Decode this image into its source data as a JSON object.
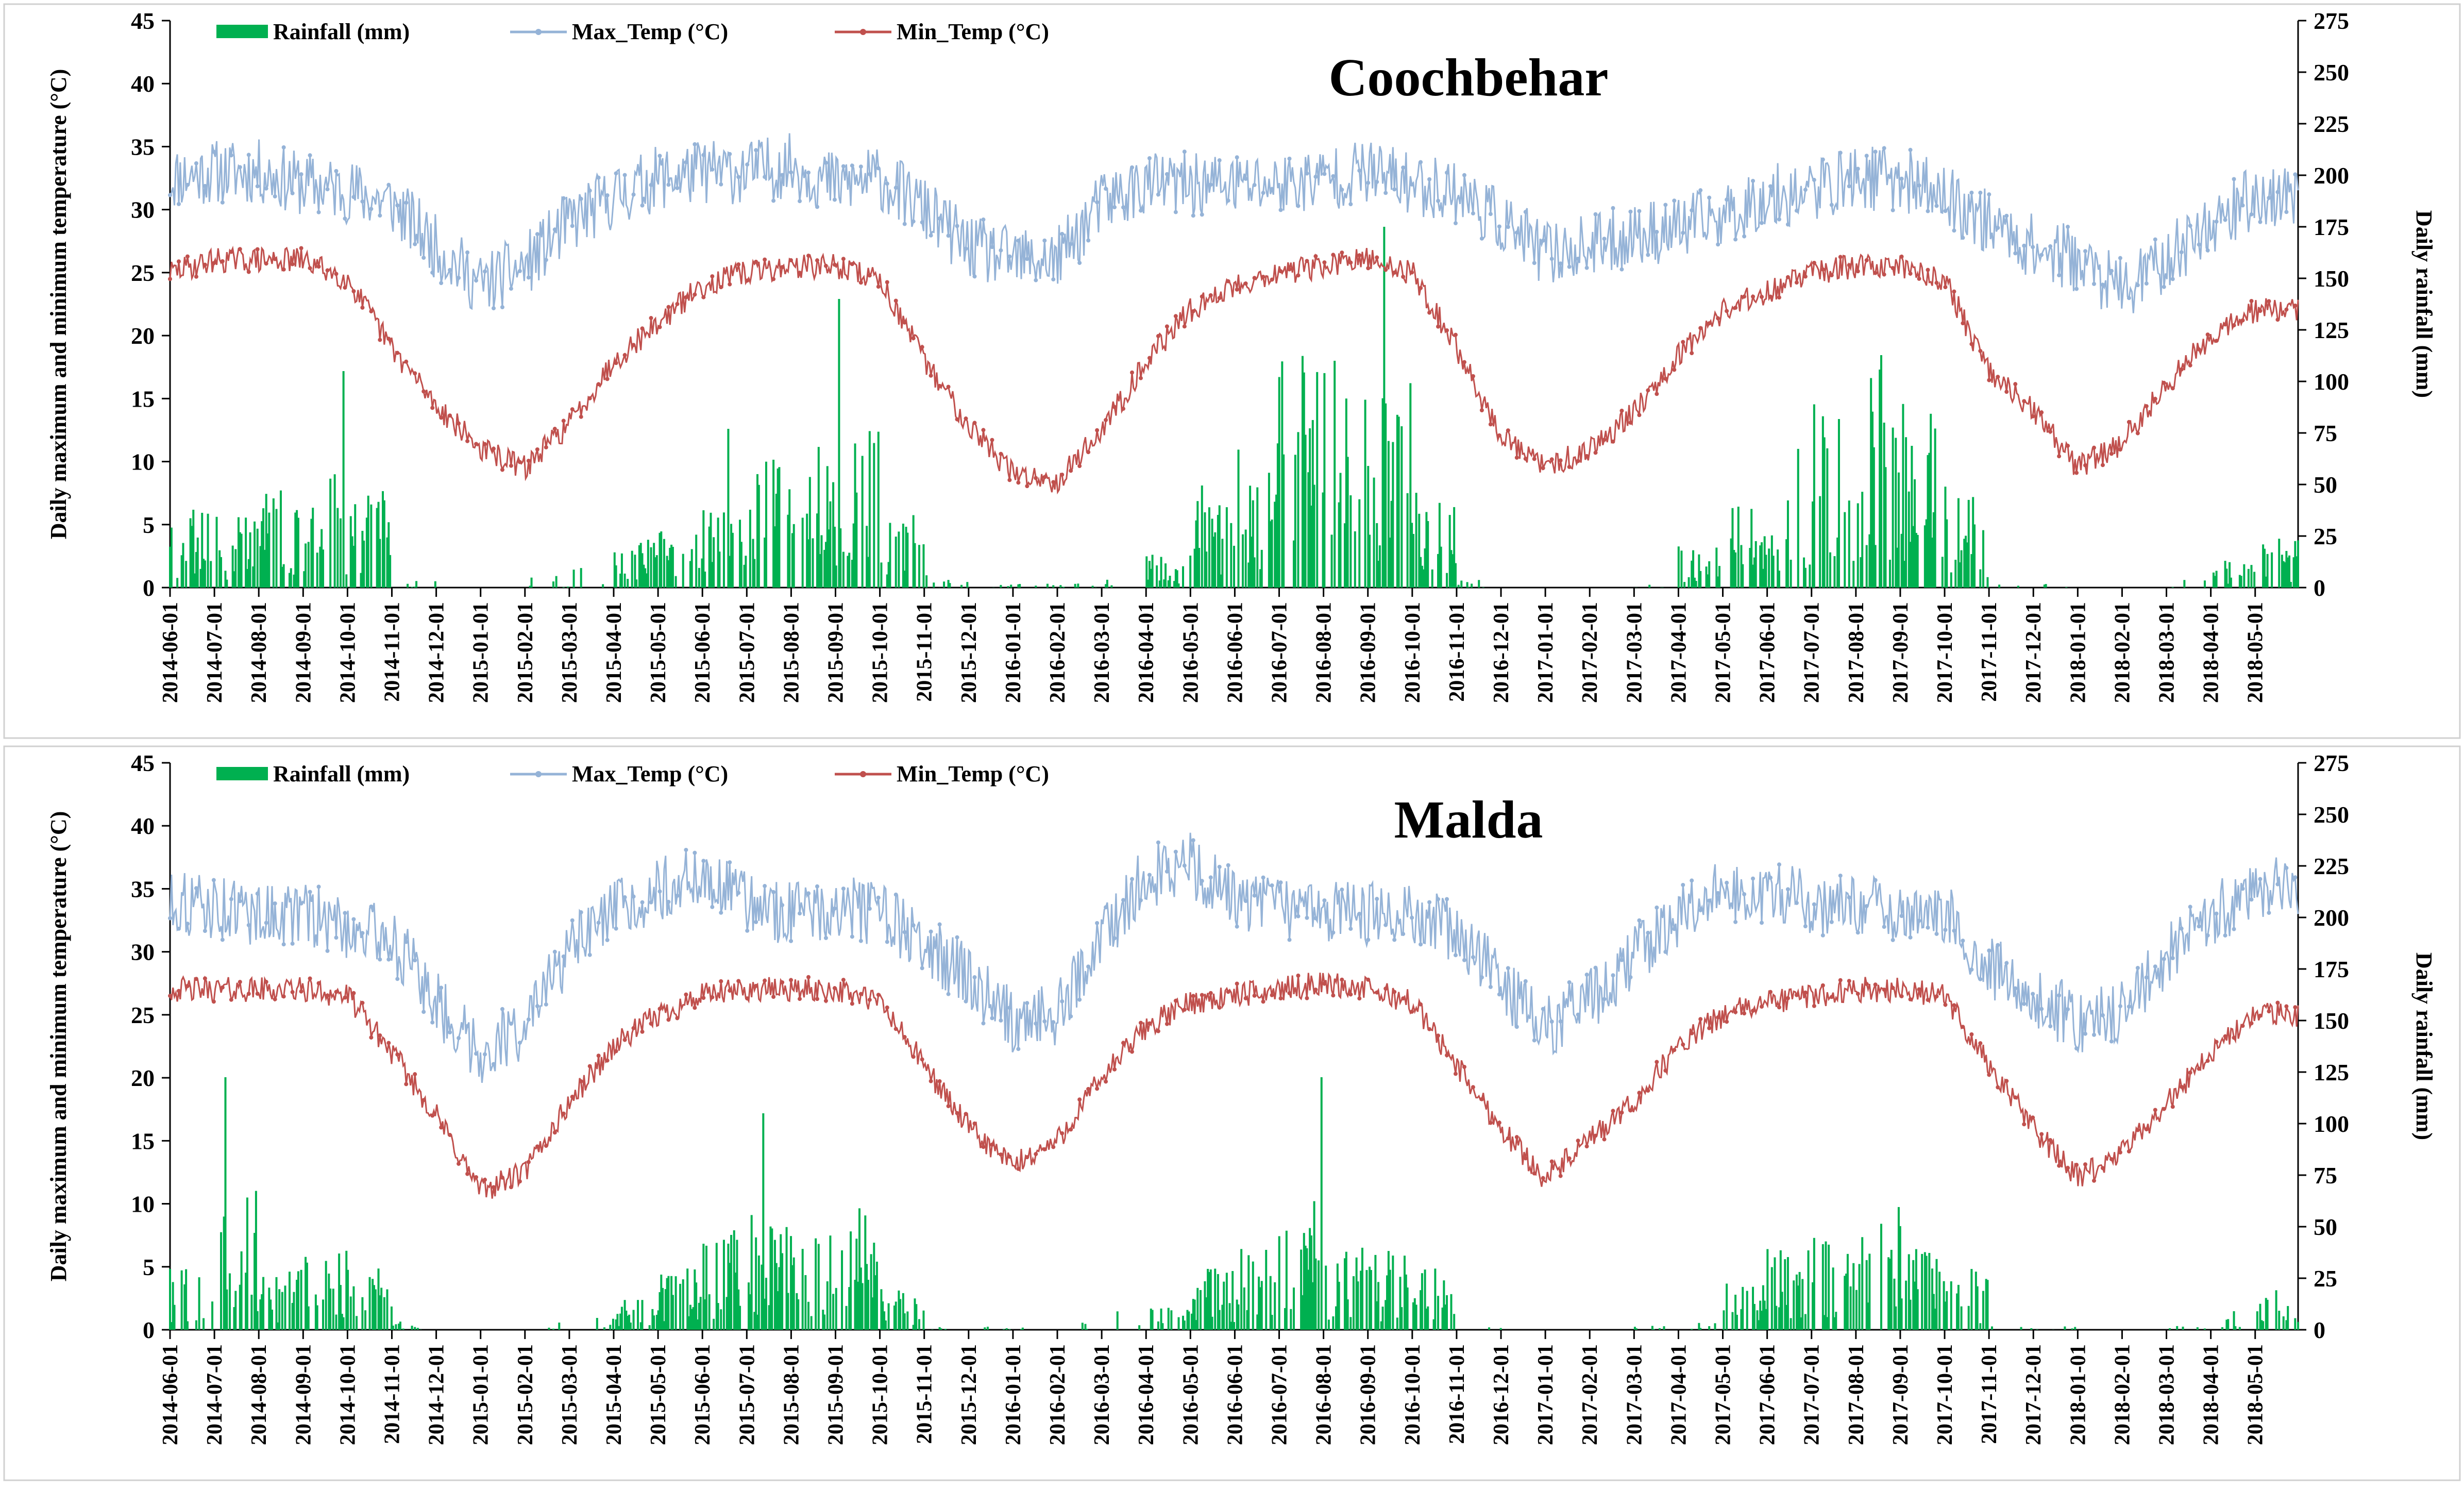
{
  "figure": {
    "panels": [
      "Coochbehar",
      "Malda"
    ],
    "legend": {
      "rainfall": "Rainfall (mm)",
      "max_temp": "Max_Temp (°C)",
      "min_temp": "Min_Temp (°C)"
    },
    "axes": {
      "y_left_label": "Daily maximum and minimum temperature (°C)",
      "y_right_label": "Daily rainfall (mm)"
    },
    "colors": {
      "rainfall": "#00b050",
      "max_temp": "#95b3d7",
      "min_temp": "#c0504d"
    }
  },
  "chart_data": [
    {
      "type": "line",
      "title": "Coochbehar",
      "legend_position": "top-left",
      "xlabel": "",
      "ylabel": "Daily maximum and minimum temperature (°C)",
      "y2label": "Daily rainfall (mm)",
      "ylim": [
        0,
        45
      ],
      "y2lim": [
        0,
        275
      ],
      "yticks": [
        0,
        5,
        10,
        15,
        20,
        25,
        30,
        35,
        40,
        45
      ],
      "y2ticks": [
        0,
        25,
        50,
        75,
        100,
        125,
        150,
        175,
        200,
        225,
        250,
        275
      ],
      "x": [
        "2014-06-01",
        "2014-07-01",
        "2014-08-01",
        "2014-09-01",
        "2014-10-01",
        "2014-11-01",
        "2014-12-01",
        "2015-01-01",
        "2015-02-01",
        "2015-03-01",
        "2015-04-01",
        "2015-05-01",
        "2015-06-01",
        "2015-07-01",
        "2015-08-01",
        "2015-09-01",
        "2015-10-01",
        "2015-11-01",
        "2015-12-01",
        "2016-01-01",
        "2016-02-01",
        "2016-03-01",
        "2016-04-01",
        "2016-05-01",
        "2016-06-01",
        "2016-07-01",
        "2016-08-01",
        "2016-09-01",
        "2016-10-01",
        "2016-11-01",
        "2016-12-01",
        "2017-01-01",
        "2017-02-01",
        "2017-03-01",
        "2017-04-01",
        "2017-05-01",
        "2017-06-01",
        "2017-07-01",
        "2017-08-01",
        "2017-09-01",
        "2017-10-01",
        "2017-11-01",
        "2017-12-01",
        "2018-01-01",
        "2018-02-01",
        "2018-03-01",
        "2018-04-01",
        "2018-05-01"
      ],
      "series": [
        {
          "name": "Max_Temp (°C)",
          "axis": "left",
          "values": [
            32.5,
            33,
            33,
            32,
            31.5,
            30.5,
            27,
            24,
            25.5,
            29,
            31,
            32.5,
            33,
            33,
            33.5,
            32,
            32.5,
            30,
            27,
            26,
            26,
            30.5,
            32,
            32,
            32,
            32,
            32.5,
            33,
            32,
            31.5,
            29,
            26.5,
            27,
            28,
            28.5,
            29.5,
            31,
            31.5,
            32.5,
            32.5,
            31,
            29,
            27,
            26,
            23.5,
            26,
            29,
            31
          ]
        },
        {
          "name": "Min_Temp (°C)",
          "axis": "left",
          "values": [
            25,
            26,
            26,
            26,
            24.5,
            19,
            14.5,
            11,
            9.5,
            13,
            18,
            21,
            24,
            25,
            25.5,
            25.5,
            24.5,
            18,
            13,
            9,
            8.5,
            12.5,
            18,
            22,
            24,
            25,
            25.5,
            26,
            25,
            19,
            12,
            9.5,
            11,
            14,
            18.5,
            22,
            23.5,
            25,
            25.5,
            25.5,
            24.5,
            17,
            14,
            9.5,
            11.5,
            16,
            20,
            22
          ]
        },
        {
          "name": "Rainfall (mm)",
          "axis": "right",
          "values": [
            20,
            18,
            25,
            30,
            25,
            2,
            0,
            0,
            3,
            5,
            12,
            18,
            22,
            35,
            35,
            40,
            20,
            3,
            1,
            1,
            1,
            2,
            8,
            25,
            35,
            65,
            60,
            50,
            25,
            2,
            0,
            0,
            0,
            1,
            10,
            22,
            35,
            50,
            60,
            45,
            25,
            2,
            1,
            0,
            0,
            2,
            8,
            12
          ]
        }
      ]
    },
    {
      "type": "line",
      "title": "Malda",
      "legend_position": "top-left",
      "xlabel": "",
      "ylabel": "Daily maximum and minimum temperature (°C)",
      "y2label": "Daily rainfall (mm)",
      "ylim": [
        0,
        45
      ],
      "y2lim": [
        0,
        275
      ],
      "yticks": [
        0,
        5,
        10,
        15,
        20,
        25,
        30,
        35,
        40,
        45
      ],
      "y2ticks": [
        0,
        25,
        50,
        75,
        100,
        125,
        150,
        175,
        200,
        225,
        250,
        275
      ],
      "x": [
        "2014-06-01",
        "2014-07-01",
        "2014-08-01",
        "2014-09-01",
        "2014-10-01",
        "2014-11-01",
        "2014-12-01",
        "2015-01-01",
        "2015-02-01",
        "2015-03-01",
        "2015-04-01",
        "2015-05-01",
        "2015-06-01",
        "2015-07-01",
        "2015-08-01",
        "2015-09-01",
        "2015-10-01",
        "2015-11-01",
        "2015-12-01",
        "2016-01-01",
        "2016-02-01",
        "2016-03-01",
        "2016-04-01",
        "2016-05-01",
        "2016-06-01",
        "2016-07-01",
        "2016-08-01",
        "2016-09-01",
        "2016-10-01",
        "2016-11-01",
        "2016-12-01",
        "2017-01-01",
        "2017-02-01",
        "2017-03-01",
        "2017-04-01",
        "2017-05-01",
        "2017-06-01",
        "2017-07-01",
        "2017-08-01",
        "2017-09-01",
        "2017-10-01",
        "2017-11-01",
        "2017-12-01",
        "2018-01-01",
        "2018-02-01",
        "2018-03-01",
        "2018-04-01",
        "2018-05-01"
      ],
      "series": [
        {
          "name": "Max_Temp (°C)",
          "axis": "left",
          "values": [
            34,
            33.5,
            33,
            33,
            32,
            31,
            26,
            22,
            24,
            30,
            33,
            35,
            36,
            34,
            33,
            33.5,
            33,
            30.5,
            28,
            24.5,
            25,
            31,
            36,
            37,
            34,
            33.5,
            33,
            33,
            33,
            31.5,
            27.5,
            24,
            26,
            29.5,
            33,
            35,
            34.5,
            34,
            33.5,
            33.5,
            33,
            29,
            26.5,
            24.5,
            25.5,
            29.5,
            33,
            35
          ]
        },
        {
          "name": "Min_Temp (°C)",
          "axis": "left",
          "values": [
            27,
            27,
            27,
            27,
            26.5,
            22,
            17,
            11,
            12.5,
            18,
            22.5,
            25,
            26.5,
            27,
            27,
            27,
            26,
            21,
            16,
            13,
            15,
            20,
            24,
            26,
            26.5,
            27,
            27.5,
            27,
            26,
            21,
            16,
            12,
            15,
            18,
            22.5,
            25,
            26,
            26.5,
            27,
            27,
            26.5,
            21,
            16,
            12,
            14,
            18,
            22,
            25
          ]
        },
        {
          "name": "Rainfall (mm)",
          "axis": "right",
          "values": [
            15,
            35,
            15,
            20,
            15,
            2,
            0,
            0,
            2,
            3,
            8,
            15,
            25,
            30,
            25,
            30,
            10,
            1,
            1,
            1,
            2,
            5,
            8,
            15,
            20,
            35,
            20,
            20,
            15,
            1,
            0,
            0,
            0,
            1,
            5,
            12,
            20,
            25,
            30,
            20,
            15,
            1,
            1,
            0,
            0,
            1,
            5,
            10
          ]
        }
      ]
    }
  ]
}
